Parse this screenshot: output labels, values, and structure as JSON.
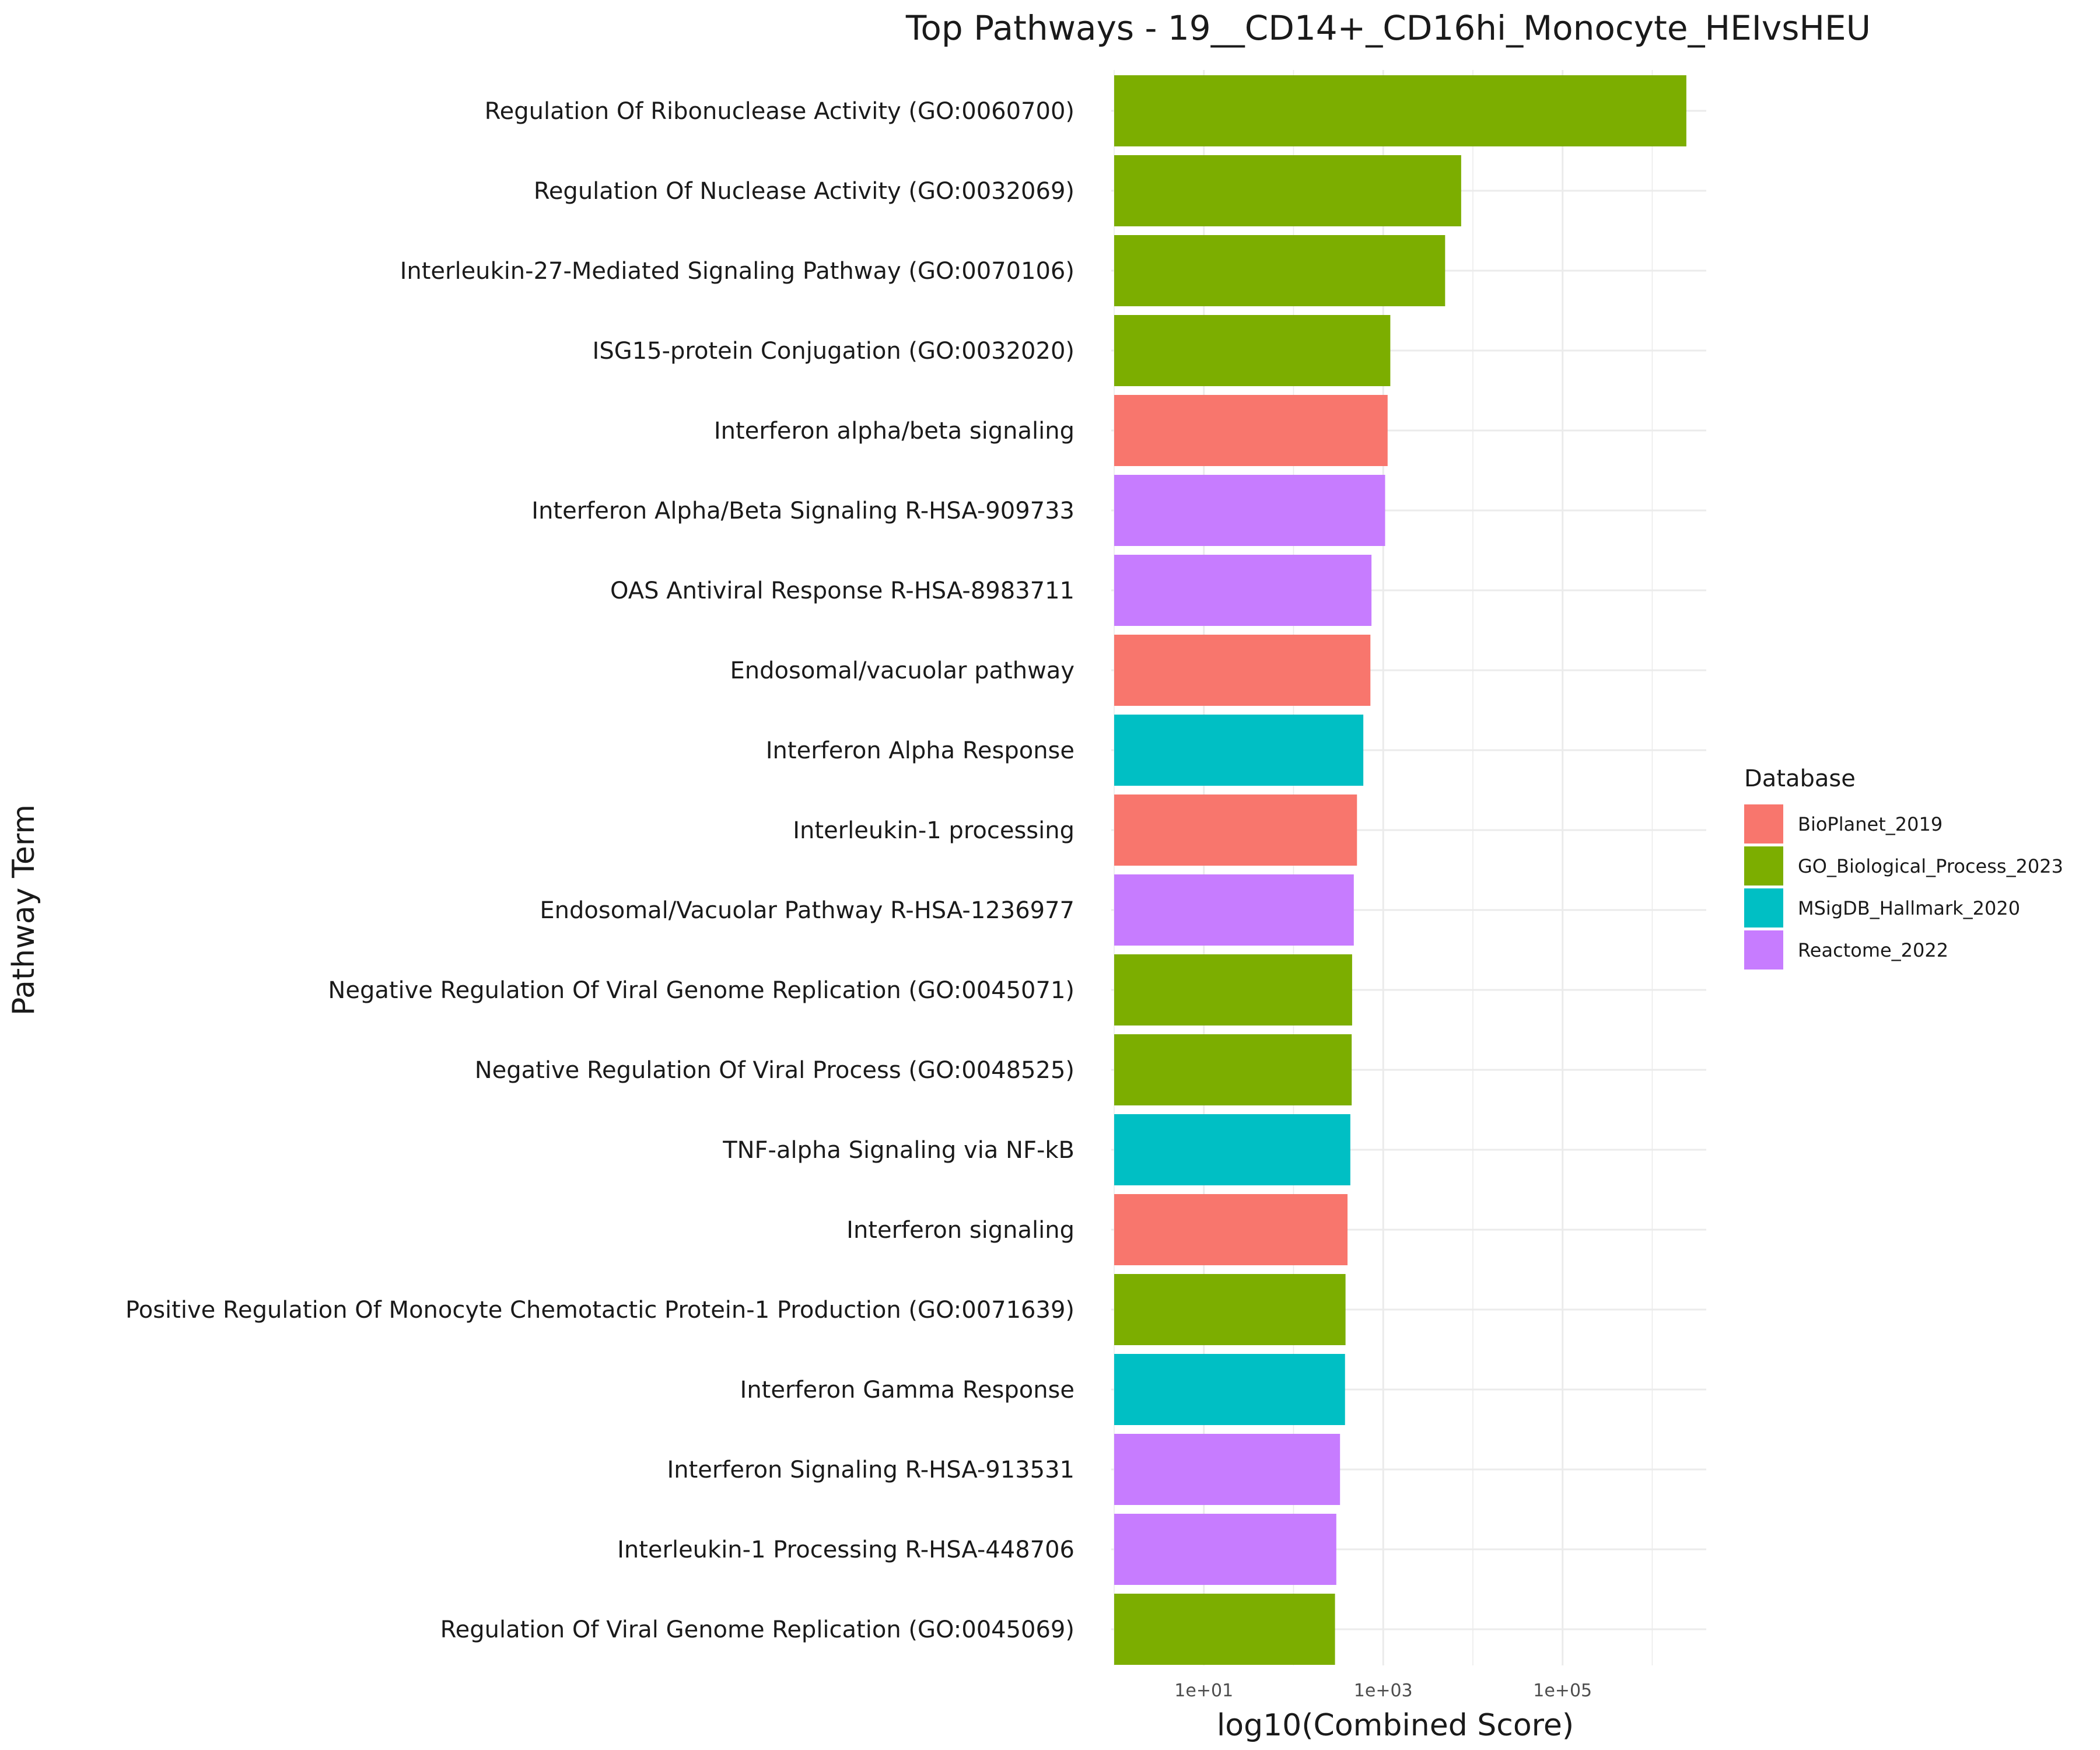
{
  "chart_data": {
    "type": "bar",
    "orientation": "horizontal",
    "title": "Top Pathways - 19__CD14+_CD16hi_Monocyte_HEIvsHEU",
    "xlabel": "log10(Combined Score)",
    "ylabel": "Pathway Term",
    "x_scale": "log10",
    "xlim": [
      1,
      4000000
    ],
    "x_ticks": [
      10,
      1000,
      100000
    ],
    "x_tick_labels": [
      "1e+01",
      "1e+03",
      "1e+05"
    ],
    "grid": true,
    "legend": {
      "title": "Database",
      "position": "right",
      "entries": [
        {
          "name": "BioPlanet_2019",
          "color": "#F8766D"
        },
        {
          "name": "GO_Biological_Process_2023",
          "color": "#7CAE00"
        },
        {
          "name": "MSigDB_Hallmark_2020",
          "color": "#00BFC4"
        },
        {
          "name": "Reactome_2022",
          "color": "#C77CFF"
        }
      ]
    },
    "bars": [
      {
        "label": "Regulation Of Ribonuclease Activity (GO:0060700)",
        "database": "GO_Biological_Process_2023",
        "value": 2400000
      },
      {
        "label": "Regulation Of Nuclease Activity (GO:0032069)",
        "database": "GO_Biological_Process_2023",
        "value": 7400
      },
      {
        "label": "Interleukin-27-Mediated Signaling Pathway (GO:0070106)",
        "database": "GO_Biological_Process_2023",
        "value": 4900
      },
      {
        "label": "ISG15-protein Conjugation (GO:0032020)",
        "database": "GO_Biological_Process_2023",
        "value": 1200
      },
      {
        "label": "Interferon alpha/beta signaling",
        "database": "BioPlanet_2019",
        "value": 1120
      },
      {
        "label": "Interferon Alpha/Beta Signaling R-HSA-909733",
        "database": "Reactome_2022",
        "value": 1050
      },
      {
        "label": "OAS Antiviral Response R-HSA-8983711",
        "database": "Reactome_2022",
        "value": 740
      },
      {
        "label": "Endosomal/vacuolar pathway",
        "database": "BioPlanet_2019",
        "value": 720
      },
      {
        "label": "Interferon Alpha Response",
        "database": "MSigDB_Hallmark_2020",
        "value": 600
      },
      {
        "label": "Interleukin-1 processing",
        "database": "BioPlanet_2019",
        "value": 510
      },
      {
        "label": "Endosomal/Vacuolar Pathway R-HSA-1236977",
        "database": "Reactome_2022",
        "value": 470
      },
      {
        "label": "Negative Regulation Of Viral Genome Replication (GO:0045071)",
        "database": "GO_Biological_Process_2023",
        "value": 450
      },
      {
        "label": "Negative Regulation Of Viral Process (GO:0048525)",
        "database": "GO_Biological_Process_2023",
        "value": 445
      },
      {
        "label": "TNF-alpha Signaling via NF-kB",
        "database": "MSigDB_Hallmark_2020",
        "value": 430
      },
      {
        "label": "Interferon signaling",
        "database": "BioPlanet_2019",
        "value": 400
      },
      {
        "label": "Positive Regulation Of Monocyte Chemotactic Protein-1 Production (GO:0071639)",
        "database": "GO_Biological_Process_2023",
        "value": 380
      },
      {
        "label": "Interferon Gamma Response",
        "database": "MSigDB_Hallmark_2020",
        "value": 375
      },
      {
        "label": "Interferon Signaling R-HSA-913531",
        "database": "Reactome_2022",
        "value": 330
      },
      {
        "label": "Interleukin-1 Processing R-HSA-448706",
        "database": "Reactome_2022",
        "value": 300
      },
      {
        "label": "Regulation Of Viral Genome Replication (GO:0045069)",
        "database": "GO_Biological_Process_2023",
        "value": 290
      }
    ]
  }
}
